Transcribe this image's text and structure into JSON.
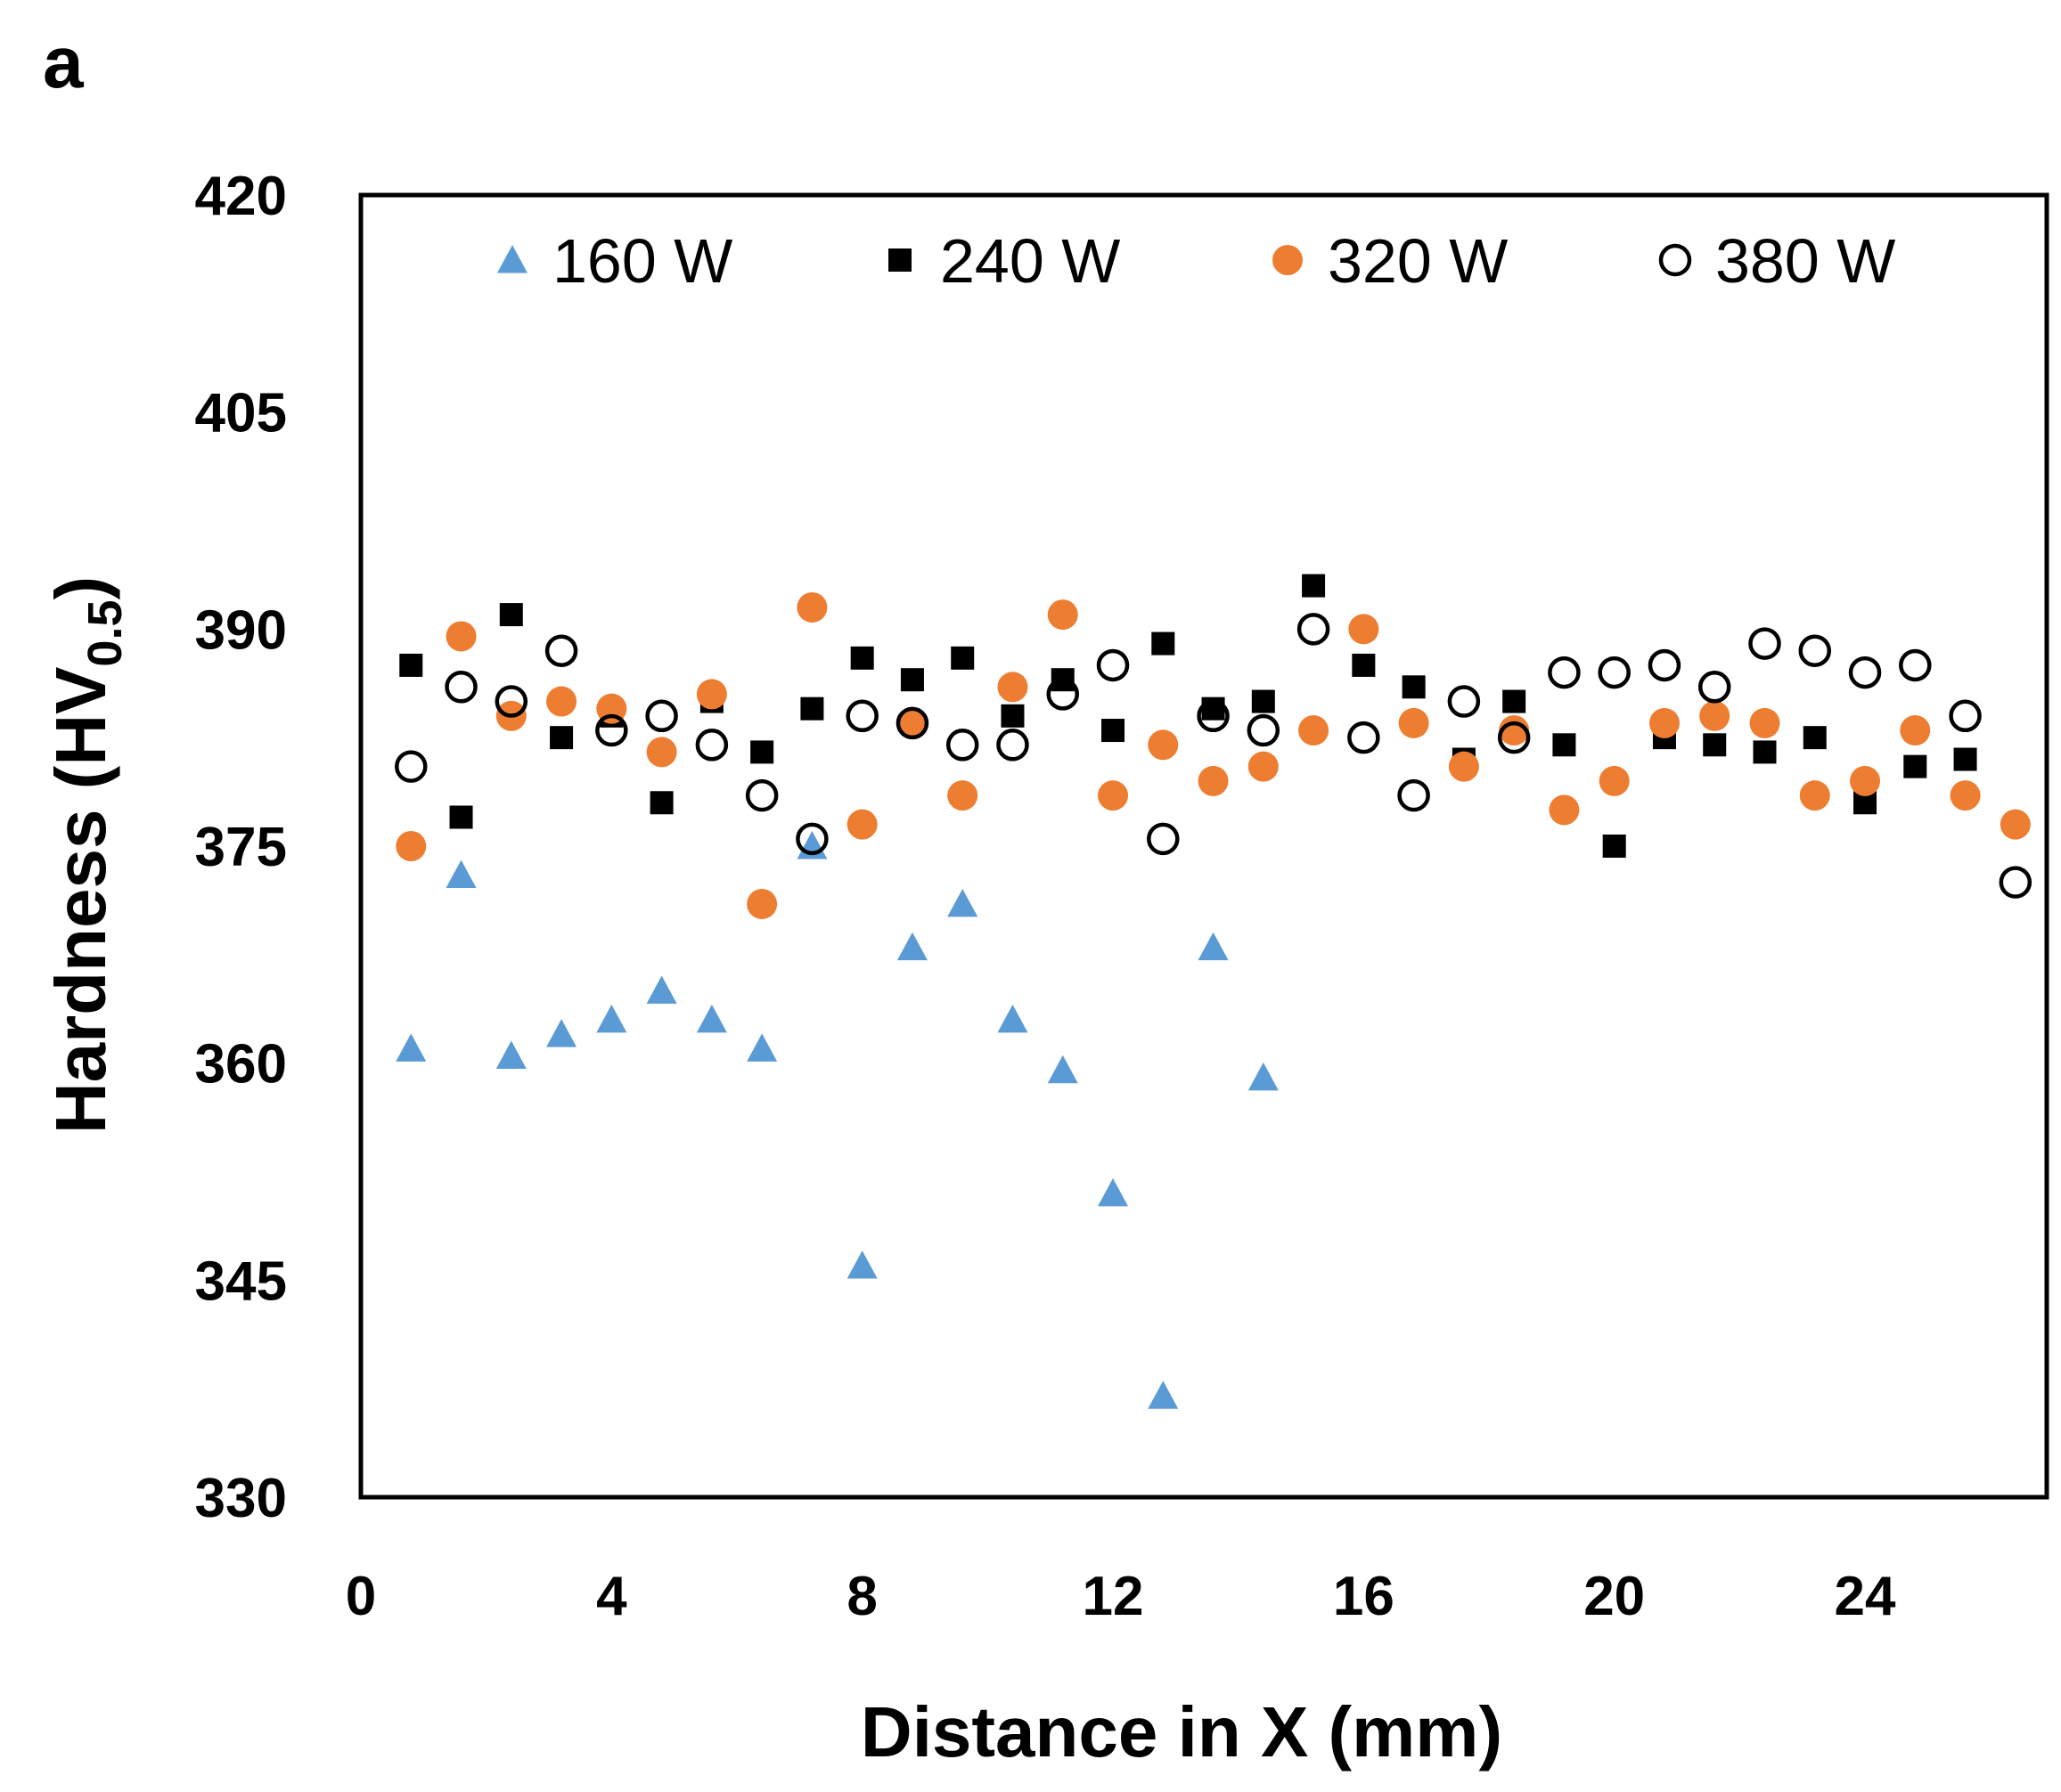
{
  "panel_label": "a",
  "chart_data": {
    "type": "scatter",
    "title": "",
    "xlabel": "Distance in X (mm)",
    "ylabel_main": "Hardness (HV",
    "ylabel_sub": "0.5",
    "ylabel_close": ")",
    "xlim": [
      0,
      26.9
    ],
    "ylim": [
      330,
      420
    ],
    "xticks": [
      0,
      4,
      8,
      12,
      16,
      20,
      24
    ],
    "xtick_labels": [
      "0",
      "4",
      "8",
      "12",
      "16",
      "20",
      "24"
    ],
    "yticks": [
      330,
      345,
      360,
      375,
      390,
      405,
      420
    ],
    "ytick_labels": [
      "330",
      "345",
      "360",
      "375",
      "390",
      "405",
      "420"
    ],
    "x": [
      0.8,
      1.6,
      2.4,
      3.2,
      4.0,
      4.8,
      5.6,
      6.4,
      7.2,
      8.0,
      8.8,
      9.6,
      10.4,
      11.2,
      12.0,
      12.8,
      13.6,
      14.4,
      15.2,
      16.0,
      16.8,
      17.6,
      18.4,
      19.2,
      20.0,
      20.8,
      21.6,
      22.4,
      23.2,
      24.0,
      24.8,
      25.6,
      26.4
    ],
    "legend_position": "top",
    "series": [
      {
        "name": "160 W",
        "marker": "triangle",
        "color": "#5b9bd5",
        "values": [
          361,
          373,
          360.5,
          362,
          363,
          365,
          363,
          361,
          375,
          346,
          368,
          371,
          363,
          359.5,
          351,
          337,
          368,
          359
        ]
      },
      {
        "name": "240 W",
        "marker": "square",
        "color": "#000000",
        "values": [
          387.5,
          377,
          391,
          382.5,
          384,
          378,
          385,
          381.5,
          384.5,
          388,
          386.5,
          388,
          384,
          386.5,
          383,
          389,
          384.5,
          385,
          393,
          387.5,
          386,
          381,
          385,
          382,
          375,
          382.5,
          382,
          381.5,
          382.5,
          378,
          380.5,
          381
        ]
      },
      {
        "name": "320 W",
        "marker": "circle",
        "color": "#ed7d31",
        "values": [
          375,
          389.5,
          384,
          385,
          384.5,
          381.5,
          385.5,
          371,
          391.5,
          376.5,
          383.5,
          378.5,
          386,
          391,
          378.5,
          382,
          379.5,
          380.5,
          383,
          390,
          383.5,
          380.5,
          383,
          377.5,
          379.5,
          383.5,
          384,
          383.5,
          378.5,
          379.5,
          383,
          378.5,
          376.5
        ]
      },
      {
        "name": "380 W",
        "marker": "circle-open",
        "color": "#000000",
        "values": [
          380.5,
          386,
          385,
          388.5,
          383,
          384,
          382,
          378.5,
          375.5,
          384,
          383.5,
          382,
          382,
          385.5,
          387.5,
          375.5,
          384,
          383,
          390,
          382.5,
          378.5,
          385,
          382.5,
          387,
          387,
          387.5,
          386,
          389,
          388.5,
          387,
          387.5,
          384,
          372.5
        ]
      }
    ]
  }
}
